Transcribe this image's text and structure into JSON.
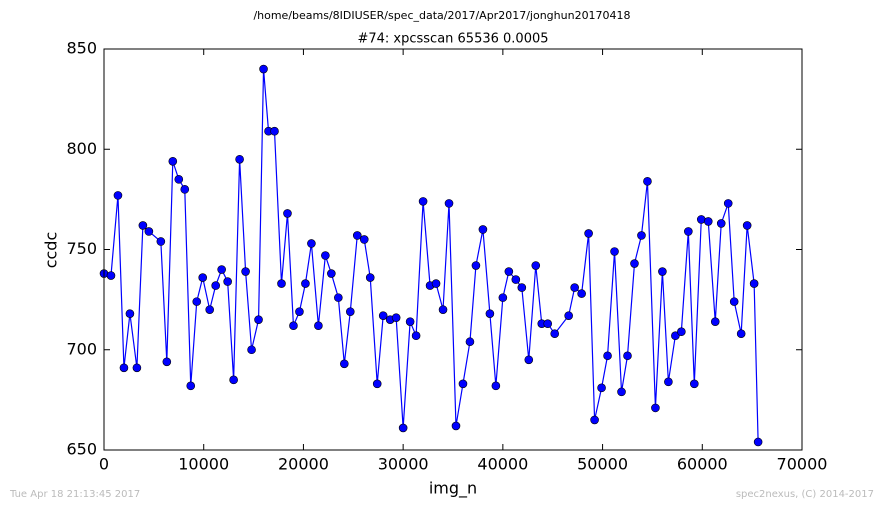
{
  "chart_data": {
    "type": "line",
    "suptitle": "/home/beams/8IDIUSER/spec_data/2017/Apr2017/jonghun20170418",
    "title": "#74: xpcsscan 65536 0.0005",
    "xlabel": "img_n",
    "ylabel": "ccdc",
    "footer_left": "Tue Apr 18 21:13:45 2017",
    "footer_right": "spec2nexus, (C) 2014-2017",
    "xlim": [
      0,
      70000
    ],
    "xticks": [
      0,
      10000,
      20000,
      30000,
      40000,
      50000,
      60000,
      70000
    ],
    "ylim": [
      650,
      850
    ],
    "yticks": [
      650,
      700,
      750,
      800,
      850
    ],
    "series": [
      {
        "color": "#0000ff",
        "x": [
          0,
          700,
          1400,
          2000,
          2600,
          3300,
          3900,
          4500,
          5700,
          6300,
          6900,
          7500,
          8100,
          8700,
          9300,
          9900,
          10600,
          11200,
          11800,
          12400,
          13000,
          13600,
          14200,
          14800,
          15500,
          16000,
          16500,
          17100,
          17800,
          18400,
          19000,
          19600,
          20200,
          20800,
          21500,
          22200,
          22800,
          23500,
          24100,
          24700,
          25400,
          26100,
          26700,
          27400,
          28000,
          28700,
          29300,
          30000,
          30700,
          31300,
          32000,
          32700,
          33300,
          34000,
          34600,
          35300,
          36000,
          36700,
          37300,
          38000,
          38700,
          39300,
          40000,
          40600,
          41300,
          41900,
          42600,
          43300,
          43900,
          44500,
          45200,
          46600,
          47200,
          47900,
          48600,
          49200,
          49900,
          50500,
          51200,
          51900,
          52500,
          53200,
          53900,
          54500,
          55300,
          56000,
          56600,
          57300,
          57900,
          58600,
          59200,
          59900,
          60600,
          61300,
          61900,
          62600,
          63200,
          63900,
          64500,
          65200,
          65600
        ],
        "values": [
          738,
          737,
          777,
          691,
          718,
          691,
          762,
          759,
          754,
          694,
          794,
          785,
          780,
          682,
          724,
          736,
          720,
          732,
          740,
          734,
          685,
          795,
          739,
          700,
          715,
          840,
          809,
          809,
          733,
          768,
          712,
          719,
          733,
          753,
          712,
          747,
          738,
          726,
          693,
          719,
          757,
          755,
          736,
          683,
          717,
          715,
          716,
          661,
          714,
          707,
          774,
          732,
          733,
          720,
          773,
          662,
          683,
          704,
          742,
          760,
          718,
          682,
          726,
          739,
          735,
          731,
          695,
          742,
          713,
          713,
          708,
          717,
          731,
          728,
          758,
          665,
          681,
          697,
          749,
          679,
          697,
          743,
          757,
          784,
          671,
          739,
          684,
          707,
          709,
          759,
          683,
          765,
          764,
          714,
          763,
          773,
          724,
          708,
          762,
          733,
          654
        ]
      }
    ]
  }
}
